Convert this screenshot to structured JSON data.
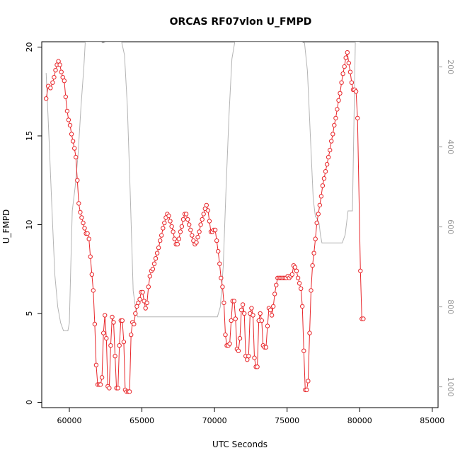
{
  "chart_data": {
    "type": "scatter",
    "title": "ORCAS RF07vlon U_FMPD",
    "xlabel": "UTC Seconds",
    "ylabel": "U_FMPD",
    "xlim": [
      58100,
      85400
    ],
    "ylim": [
      -0.3,
      20.3
    ],
    "x_ticks": [
      60000,
      65000,
      70000,
      75000,
      80000,
      85000
    ],
    "y_ticks": [
      0,
      5,
      10,
      15,
      20
    ],
    "right_axis": {
      "ticks": [
        200,
        400,
        600,
        800,
        1000
      ],
      "lim": [
        1052,
        137
      ],
      "color": "#9a9a9a"
    },
    "series": [
      {
        "role": "primary",
        "style": "points-and-lines",
        "color": "#e8262a",
        "points": [
          [
            58400,
            17.1
          ],
          [
            58550,
            17.8
          ],
          [
            58700,
            17.7
          ],
          [
            58850,
            18.0
          ],
          [
            58950,
            18.3
          ],
          [
            59050,
            18.7
          ],
          [
            59150,
            19.0
          ],
          [
            59250,
            19.2
          ],
          [
            59350,
            19.0
          ],
          [
            59450,
            18.6
          ],
          [
            59550,
            18.3
          ],
          [
            59650,
            18.1
          ],
          [
            59750,
            17.2
          ],
          [
            59850,
            16.4
          ],
          [
            59950,
            15.9
          ],
          [
            60050,
            15.6
          ],
          [
            60150,
            15.1
          ],
          [
            60250,
            14.7
          ],
          [
            60350,
            14.3
          ],
          [
            60450,
            13.8
          ],
          [
            60550,
            12.5
          ],
          [
            60650,
            11.2
          ],
          [
            60750,
            10.7
          ],
          [
            60850,
            10.4
          ],
          [
            60950,
            10.1
          ],
          [
            61050,
            9.8
          ],
          [
            61150,
            9.5
          ],
          [
            61250,
            9.5
          ],
          [
            61350,
            9.2
          ],
          [
            61450,
            8.2
          ],
          [
            61550,
            7.2
          ],
          [
            61650,
            6.3
          ],
          [
            61750,
            4.4
          ],
          [
            61850,
            2.1
          ],
          [
            61950,
            1.0
          ],
          [
            62050,
            1.0
          ],
          [
            62150,
            1.0
          ],
          [
            62250,
            1.4
          ],
          [
            62350,
            3.9
          ],
          [
            62450,
            4.9
          ],
          [
            62550,
            3.6
          ],
          [
            62650,
            0.9
          ],
          [
            62750,
            0.8
          ],
          [
            62850,
            3.2
          ],
          [
            62950,
            4.8
          ],
          [
            63050,
            4.5
          ],
          [
            63150,
            2.6
          ],
          [
            63250,
            0.8
          ],
          [
            63350,
            0.8
          ],
          [
            63450,
            3.2
          ],
          [
            63550,
            4.6
          ],
          [
            63650,
            4.6
          ],
          [
            63750,
            3.4
          ],
          [
            63850,
            0.7
          ],
          [
            63950,
            0.6
          ],
          [
            64050,
            0.6
          ],
          [
            64150,
            0.6
          ],
          [
            64250,
            3.8
          ],
          [
            64350,
            4.5
          ],
          [
            64450,
            4.4
          ],
          [
            64550,
            5.0
          ],
          [
            64650,
            5.4
          ],
          [
            64750,
            5.6
          ],
          [
            64850,
            5.8
          ],
          [
            64950,
            6.2
          ],
          [
            65050,
            6.2
          ],
          [
            65150,
            5.7
          ],
          [
            65250,
            5.3
          ],
          [
            65350,
            5.6
          ],
          [
            65450,
            6.5
          ],
          [
            65550,
            7.1
          ],
          [
            65650,
            7.4
          ],
          [
            65750,
            7.5
          ],
          [
            65850,
            7.8
          ],
          [
            65950,
            8.1
          ],
          [
            66050,
            8.4
          ],
          [
            66150,
            8.7
          ],
          [
            66250,
            9.1
          ],
          [
            66350,
            9.4
          ],
          [
            66450,
            9.8
          ],
          [
            66550,
            10.1
          ],
          [
            66650,
            10.4
          ],
          [
            66750,
            10.6
          ],
          [
            66850,
            10.5
          ],
          [
            66950,
            10.2
          ],
          [
            67050,
            9.9
          ],
          [
            67150,
            9.6
          ],
          [
            67250,
            9.2
          ],
          [
            67350,
            8.9
          ],
          [
            67450,
            8.9
          ],
          [
            67550,
            9.2
          ],
          [
            67650,
            9.6
          ],
          [
            67750,
            9.9
          ],
          [
            67850,
            10.3
          ],
          [
            67950,
            10.6
          ],
          [
            68050,
            10.6
          ],
          [
            68150,
            10.3
          ],
          [
            68250,
            10.0
          ],
          [
            68350,
            9.7
          ],
          [
            68450,
            9.4
          ],
          [
            68550,
            9.1
          ],
          [
            68650,
            8.9
          ],
          [
            68750,
            9.0
          ],
          [
            68850,
            9.3
          ],
          [
            68950,
            9.6
          ],
          [
            69050,
            10.0
          ],
          [
            69150,
            10.3
          ],
          [
            69250,
            10.6
          ],
          [
            69350,
            10.9
          ],
          [
            69450,
            11.1
          ],
          [
            69550,
            10.8
          ],
          [
            69650,
            10.2
          ],
          [
            69750,
            9.6
          ],
          [
            69850,
            9.6
          ],
          [
            69950,
            9.7
          ],
          [
            70050,
            9.7
          ],
          [
            70150,
            9.1
          ],
          [
            70250,
            8.5
          ],
          [
            70350,
            7.8
          ],
          [
            70450,
            7.0
          ],
          [
            70550,
            6.5
          ],
          [
            70650,
            5.6
          ],
          [
            70750,
            3.8
          ],
          [
            70850,
            3.2
          ],
          [
            70950,
            3.2
          ],
          [
            71050,
            3.3
          ],
          [
            71150,
            4.6
          ],
          [
            71250,
            5.7
          ],
          [
            71350,
            5.7
          ],
          [
            71450,
            4.7
          ],
          [
            71550,
            3.0
          ],
          [
            71650,
            2.9
          ],
          [
            71750,
            3.6
          ],
          [
            71850,
            5.2
          ],
          [
            71950,
            5.5
          ],
          [
            72050,
            5.0
          ],
          [
            72150,
            2.6
          ],
          [
            72250,
            2.4
          ],
          [
            72350,
            2.6
          ],
          [
            72450,
            5.0
          ],
          [
            72550,
            5.3
          ],
          [
            72650,
            4.9
          ],
          [
            72750,
            2.5
          ],
          [
            72850,
            2.0
          ],
          [
            72950,
            2.0
          ],
          [
            73050,
            4.6
          ],
          [
            73150,
            5.0
          ],
          [
            73250,
            4.6
          ],
          [
            73350,
            3.2
          ],
          [
            73450,
            3.1
          ],
          [
            73550,
            3.1
          ],
          [
            73650,
            4.3
          ],
          [
            73750,
            5.3
          ],
          [
            73850,
            5.2
          ],
          [
            73950,
            4.9
          ],
          [
            74050,
            5.4
          ],
          [
            74150,
            6.1
          ],
          [
            74250,
            6.6
          ],
          [
            74350,
            7.0
          ],
          [
            74450,
            7.0
          ],
          [
            74550,
            7.0
          ],
          [
            74650,
            7.0
          ],
          [
            74750,
            7.0
          ],
          [
            74850,
            7.0
          ],
          [
            74950,
            7.0
          ],
          [
            75050,
            7.1
          ],
          [
            75150,
            7.0
          ],
          [
            75250,
            7.1
          ],
          [
            75350,
            7.2
          ],
          [
            75450,
            7.7
          ],
          [
            75550,
            7.6
          ],
          [
            75650,
            7.4
          ],
          [
            75750,
            7.0
          ],
          [
            75850,
            6.7
          ],
          [
            75950,
            6.4
          ],
          [
            76050,
            5.4
          ],
          [
            76150,
            2.9
          ],
          [
            76250,
            0.7
          ],
          [
            76350,
            0.7
          ],
          [
            76450,
            1.2
          ],
          [
            76550,
            3.9
          ],
          [
            76650,
            6.3
          ],
          [
            76750,
            7.7
          ],
          [
            76850,
            8.4
          ],
          [
            76950,
            9.2
          ],
          [
            77050,
            10.1
          ],
          [
            77150,
            10.6
          ],
          [
            77250,
            11.1
          ],
          [
            77350,
            11.6
          ],
          [
            77450,
            12.2
          ],
          [
            77550,
            12.6
          ],
          [
            77650,
            13.0
          ],
          [
            77750,
            13.4
          ],
          [
            77850,
            13.8
          ],
          [
            77950,
            14.2
          ],
          [
            78050,
            14.7
          ],
          [
            78150,
            15.1
          ],
          [
            78250,
            15.6
          ],
          [
            78350,
            16.0
          ],
          [
            78450,
            16.5
          ],
          [
            78550,
            17.0
          ],
          [
            78650,
            17.4
          ],
          [
            78750,
            18.0
          ],
          [
            78850,
            18.5
          ],
          [
            78950,
            18.9
          ],
          [
            79050,
            19.4
          ],
          [
            79150,
            19.7
          ],
          [
            79250,
            19.1
          ],
          [
            79350,
            18.6
          ],
          [
            79450,
            18.0
          ],
          [
            79550,
            17.6
          ],
          [
            79650,
            17.6
          ],
          [
            79750,
            17.5
          ],
          [
            79850,
            16.0
          ],
          [
            80050,
            7.4
          ],
          [
            80150,
            4.7
          ],
          [
            80250,
            4.7
          ]
        ]
      },
      {
        "role": "secondary",
        "style": "line",
        "color": "#b4b4b4",
        "axis": "right",
        "points": [
          [
            58400,
            215
          ],
          [
            58600,
            380
          ],
          [
            58800,
            555
          ],
          [
            59000,
            720
          ],
          [
            59200,
            800
          ],
          [
            59400,
            840
          ],
          [
            59600,
            860
          ],
          [
            59700,
            860
          ],
          [
            59800,
            860
          ],
          [
            59900,
            860
          ],
          [
            60000,
            840
          ],
          [
            60100,
            700
          ],
          [
            60200,
            560
          ],
          [
            60400,
            500
          ],
          [
            60600,
            420
          ],
          [
            60800,
            300
          ],
          [
            61000,
            200
          ],
          [
            61100,
            137
          ],
          [
            61500,
            137
          ],
          [
            62000,
            137
          ],
          [
            62200,
            137
          ],
          [
            62300,
            140
          ],
          [
            62500,
            137
          ],
          [
            62700,
            137
          ],
          [
            63000,
            137
          ],
          [
            63300,
            137
          ],
          [
            63500,
            137
          ],
          [
            63600,
            137
          ],
          [
            63800,
            170
          ],
          [
            64000,
            300
          ],
          [
            64200,
            520
          ],
          [
            64400,
            760
          ],
          [
            64550,
            800
          ],
          [
            64700,
            825
          ],
          [
            64900,
            825
          ],
          [
            65500,
            825
          ],
          [
            66000,
            825
          ],
          [
            66500,
            825
          ],
          [
            67000,
            825
          ],
          [
            67500,
            825
          ],
          [
            68000,
            825
          ],
          [
            68500,
            825
          ],
          [
            69000,
            825
          ],
          [
            69500,
            825
          ],
          [
            70000,
            825
          ],
          [
            70200,
            825
          ],
          [
            70400,
            800
          ],
          [
            70600,
            700
          ],
          [
            70800,
            500
          ],
          [
            71000,
            320
          ],
          [
            71200,
            180
          ],
          [
            71400,
            137
          ],
          [
            71600,
            137
          ],
          [
            72000,
            137
          ],
          [
            72500,
            137
          ],
          [
            73000,
            137
          ],
          [
            73500,
            137
          ],
          [
            74000,
            137
          ],
          [
            74500,
            137
          ],
          [
            75000,
            137
          ],
          [
            75500,
            137
          ],
          [
            75800,
            137
          ],
          [
            76000,
            137
          ],
          [
            76200,
            140
          ],
          [
            76400,
            210
          ],
          [
            76600,
            370
          ],
          [
            76800,
            530
          ],
          [
            76950,
            575
          ],
          [
            77000,
            575
          ],
          [
            77200,
            590
          ],
          [
            77300,
            620
          ],
          [
            77400,
            640
          ],
          [
            77600,
            640
          ],
          [
            78000,
            640
          ],
          [
            78500,
            640
          ],
          [
            78800,
            640
          ],
          [
            79000,
            620
          ],
          [
            79200,
            560
          ],
          [
            79500,
            560
          ],
          [
            79700,
            137
          ],
          [
            80000,
            137
          ]
        ]
      }
    ]
  }
}
